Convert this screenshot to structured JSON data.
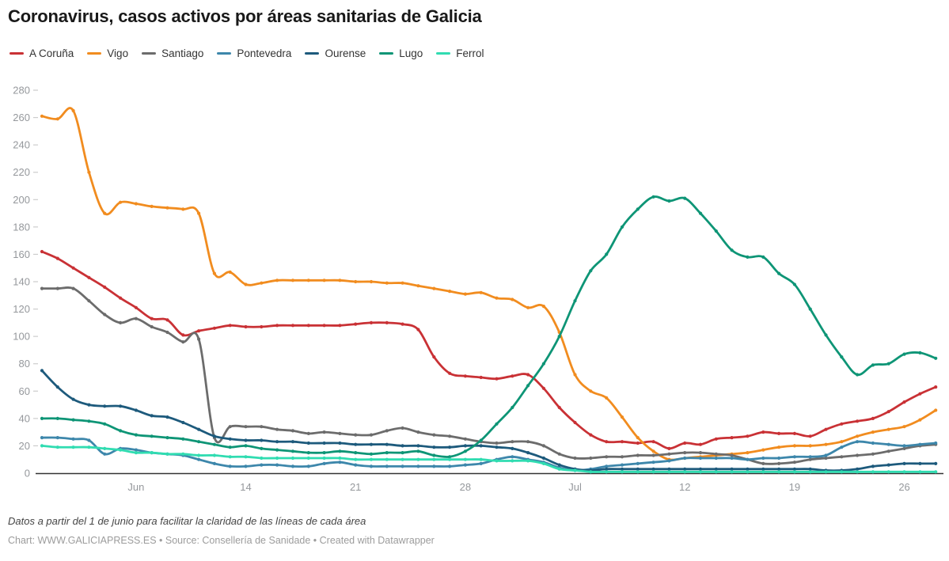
{
  "title": "Coronavirus, casos activos por áreas sanitarias de Galicia",
  "footer": {
    "note": "Datos a partir del 1 de junio para facilitar la claridad de las líneas de cada área",
    "credit": "Chart: WWW.GALICIAPRESS.ES • Source: Consellería de Sanidade • Created with Datawrapper"
  },
  "colors": {
    "axis_text": "#95989c",
    "baseline": "#333333",
    "tick_dash": "#cccccc"
  },
  "chart_data": {
    "type": "line",
    "title": "Coronavirus, casos activos por áreas sanitarias de Galicia",
    "xlabel": "",
    "ylabel": "",
    "ylim": [
      0,
      280
    ],
    "grid": false,
    "markers": true,
    "legend_position": "top-left",
    "y_ticks": [
      0,
      20,
      40,
      60,
      80,
      100,
      120,
      140,
      160,
      180,
      200,
      220,
      240,
      260,
      280
    ],
    "x_tick_marks": [
      {
        "index": 6,
        "label": "Jun"
      },
      {
        "index": 13,
        "label": "14"
      },
      {
        "index": 20,
        "label": "21"
      },
      {
        "index": 27,
        "label": "28"
      },
      {
        "index": 34,
        "label": "Jul"
      },
      {
        "index": 41,
        "label": "12"
      },
      {
        "index": 48,
        "label": "19"
      },
      {
        "index": 55,
        "label": "26"
      }
    ],
    "x": [
      "1 Jun",
      "2 Jun",
      "3 Jun",
      "4 Jun",
      "5 Jun",
      "6 Jun",
      "7 Jun",
      "8 Jun",
      "9 Jun",
      "10 Jun",
      "11 Jun",
      "12 Jun",
      "13 Jun",
      "14 Jun",
      "15 Jun",
      "16 Jun",
      "17 Jun",
      "18 Jun",
      "19 Jun",
      "20 Jun",
      "21 Jun",
      "22 Jun",
      "23 Jun",
      "24 Jun",
      "25 Jun",
      "26 Jun",
      "27 Jun",
      "28 Jun",
      "29 Jun",
      "30 Jun",
      "1 Jul",
      "2 Jul",
      "3 Jul",
      "4 Jul",
      "5 Jul",
      "6 Jul",
      "7 Jul",
      "8 Jul",
      "9 Jul",
      "10 Jul",
      "11 Jul",
      "12 Jul",
      "13 Jul",
      "14 Jul",
      "15 Jul",
      "16 Jul",
      "17 Jul",
      "18 Jul",
      "19 Jul",
      "20 Jul",
      "21 Jul",
      "22 Jul",
      "23 Jul",
      "24 Jul",
      "25 Jul",
      "26 Jul",
      "27 Jul",
      "28 Jul"
    ],
    "series": [
      {
        "name": "A Coruña",
        "color": "#c93135",
        "values": [
          162,
          157,
          150,
          143,
          136,
          128,
          121,
          113,
          112,
          101,
          104,
          106,
          108,
          107,
          107,
          108,
          108,
          108,
          108,
          108,
          109,
          110,
          110,
          109,
          105,
          85,
          73,
          71,
          70,
          69,
          71,
          72,
          62,
          48,
          37,
          28,
          23,
          23,
          22,
          23,
          18,
          22,
          21,
          25,
          26,
          27,
          30,
          29,
          29,
          27,
          32,
          36,
          38,
          40,
          45,
          52,
          58,
          63
        ]
      },
      {
        "name": "Vigo",
        "color": "#f18c1f",
        "values": [
          261,
          259,
          265,
          220,
          190,
          198,
          197,
          195,
          194,
          193,
          190,
          146,
          147,
          138,
          139,
          141,
          141,
          141,
          141,
          141,
          140,
          140,
          139,
          139,
          137,
          135,
          133,
          131,
          132,
          128,
          127,
          121,
          122,
          103,
          72,
          60,
          55,
          41,
          26,
          16,
          10,
          11,
          12,
          13,
          14,
          15,
          17,
          19,
          20,
          20,
          21,
          23,
          27,
          30,
          32,
          34,
          39,
          46
        ]
      },
      {
        "name": "Santiago",
        "color": "#6c6c6c",
        "values": [
          135,
          135,
          135,
          126,
          116,
          110,
          113,
          107,
          103,
          96,
          98,
          26,
          34,
          34,
          34,
          32,
          31,
          29,
          30,
          29,
          28,
          28,
          31,
          33,
          30,
          28,
          27,
          25,
          23,
          22,
          23,
          23,
          20,
          14,
          11,
          11,
          12,
          12,
          13,
          13,
          14,
          15,
          15,
          14,
          13,
          10,
          7,
          7,
          8,
          10,
          11,
          12,
          13,
          14,
          16,
          18,
          20,
          21
        ]
      },
      {
        "name": "Pontevedra",
        "color": "#3d87ab",
        "values": [
          26,
          26,
          25,
          24,
          14,
          18,
          17,
          15,
          14,
          13,
          10,
          7,
          5,
          5,
          6,
          6,
          5,
          5,
          7,
          8,
          6,
          5,
          5,
          5,
          5,
          5,
          5,
          6,
          7,
          10,
          12,
          10,
          8,
          4,
          2,
          3,
          5,
          6,
          7,
          8,
          9,
          11,
          11,
          11,
          11,
          10,
          11,
          11,
          12,
          12,
          13,
          19,
          23,
          22,
          21,
          20,
          21,
          22
        ]
      },
      {
        "name": "Ourense",
        "color": "#1d5a7c",
        "values": [
          75,
          63,
          54,
          50,
          49,
          49,
          46,
          42,
          41,
          37,
          32,
          27,
          25,
          24,
          24,
          23,
          23,
          22,
          22,
          22,
          21,
          21,
          21,
          20,
          20,
          19,
          19,
          20,
          20,
          19,
          18,
          15,
          11,
          6,
          3,
          2,
          3,
          3,
          3,
          3,
          3,
          3,
          3,
          3,
          3,
          3,
          3,
          3,
          3,
          3,
          2,
          2,
          3,
          5,
          6,
          7,
          7,
          7
        ]
      },
      {
        "name": "Lugo",
        "color": "#0e9576",
        "values": [
          40,
          40,
          39,
          38,
          36,
          31,
          28,
          27,
          26,
          25,
          23,
          21,
          19,
          20,
          18,
          17,
          16,
          15,
          15,
          16,
          15,
          14,
          15,
          15,
          16,
          13,
          12,
          16,
          24,
          36,
          48,
          64,
          80,
          100,
          126,
          148,
          160,
          180,
          193,
          202,
          199,
          201,
          190,
          177,
          163,
          158,
          158,
          146,
          138,
          120,
          101,
          85,
          72,
          79,
          80,
          87,
          88,
          84
        ]
      },
      {
        "name": "Ferrol",
        "color": "#30dcb1",
        "values": [
          20,
          19,
          19,
          19,
          18,
          17,
          15,
          15,
          14,
          14,
          13,
          13,
          12,
          12,
          11,
          11,
          11,
          11,
          11,
          11,
          10,
          10,
          10,
          10,
          10,
          10,
          10,
          10,
          10,
          9,
          9,
          9,
          7,
          3,
          2,
          1,
          1,
          1,
          1,
          1,
          1,
          1,
          1,
          1,
          1,
          1,
          1,
          1,
          1,
          1,
          1,
          1,
          1,
          1,
          1,
          1,
          1,
          1
        ]
      }
    ]
  }
}
